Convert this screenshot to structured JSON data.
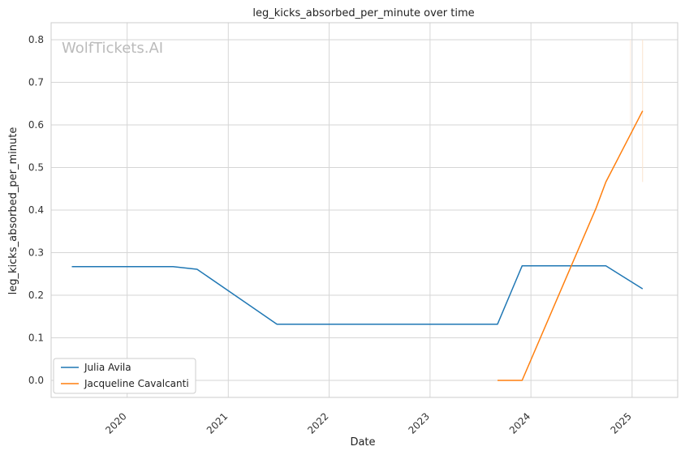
{
  "chart_data": {
    "type": "line",
    "title": "leg_kicks_absorbed_per_minute over time",
    "xlabel": "Date",
    "ylabel": "leg_kicks_absorbed_per_minute",
    "watermark": "WolfTickets.AI",
    "xlim": [
      "2019-04-01",
      "2025-06-15"
    ],
    "ylim": [
      -0.04,
      0.84
    ],
    "x_ticks": [
      "2020",
      "2021",
      "2022",
      "2023",
      "2024",
      "2025"
    ],
    "y_ticks": [
      "0.0",
      "0.1",
      "0.2",
      "0.3",
      "0.4",
      "0.5",
      "0.6",
      "0.7",
      "0.8"
    ],
    "grid": true,
    "legend_position": "lower-left",
    "series": [
      {
        "name": "Julia Avila",
        "color": "#1f77b4",
        "x": [
          "2019-06-15",
          "2020-06-15",
          "2020-09-10",
          "2021-06-26",
          "2023-09-02",
          "2023-11-30",
          "2024-09-28",
          "2025-02-08"
        ],
        "y": [
          0.267,
          0.267,
          0.261,
          0.132,
          0.132,
          0.269,
          0.269,
          0.215
        ]
      },
      {
        "name": "Jacqueline Cavalcanti",
        "color": "#ff7f0e",
        "x": [
          "2023-09-02",
          "2023-11-30",
          "2024-08-24",
          "2024-09-28",
          "2025-02-08"
        ],
        "y": [
          0.0,
          0.0,
          0.405,
          0.466,
          0.633
        ]
      }
    ]
  }
}
